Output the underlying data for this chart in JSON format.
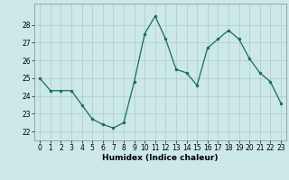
{
  "x": [
    0,
    1,
    2,
    3,
    4,
    5,
    6,
    7,
    8,
    9,
    10,
    11,
    12,
    13,
    14,
    15,
    16,
    17,
    18,
    19,
    20,
    21,
    22,
    23
  ],
  "y": [
    25.0,
    24.3,
    24.3,
    24.3,
    23.5,
    22.7,
    22.4,
    22.2,
    22.5,
    24.8,
    27.5,
    28.5,
    27.2,
    25.5,
    25.3,
    24.6,
    26.7,
    27.2,
    27.7,
    27.2,
    26.1,
    25.3,
    24.8,
    23.6
  ],
  "line_color": "#1a6b5a",
  "marker": "o",
  "marker_size": 2.0,
  "bg_color": "#cce8e8",
  "grid_color": "#aacccc",
  "xlabel": "Humidex (Indice chaleur)",
  "ylim": [
    21.5,
    29.2
  ],
  "xlim": [
    -0.5,
    23.5
  ],
  "yticks": [
    22,
    23,
    24,
    25,
    26,
    27,
    28
  ],
  "xticks": [
    0,
    1,
    2,
    3,
    4,
    5,
    6,
    7,
    8,
    9,
    10,
    11,
    12,
    13,
    14,
    15,
    16,
    17,
    18,
    19,
    20,
    21,
    22,
    23
  ],
  "tick_fontsize": 5.5,
  "xlabel_fontsize": 6.5
}
